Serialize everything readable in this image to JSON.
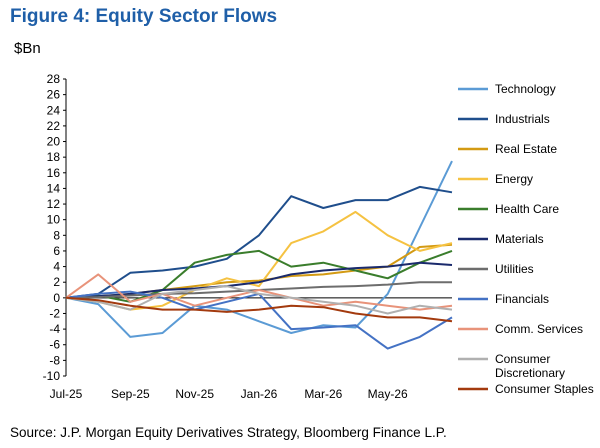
{
  "title": "Figure 4: Equity Sector Flows",
  "unit_label": "$Bn",
  "source": "Source: J.P. Morgan Equity Derivatives Strategy, Bloomberg Finance L.P.",
  "chart_data": {
    "type": "line",
    "title": "Figure 4: Equity Sector Flows",
    "ylabel": "$Bn",
    "xlabel": "",
    "ylim": [
      -10,
      28
    ],
    "yticks": [
      28,
      26,
      24,
      22,
      20,
      18,
      16,
      14,
      12,
      10,
      8,
      6,
      4,
      2,
      0,
      -2,
      -4,
      -6,
      -8,
      -10
    ],
    "xticks": [
      "Jul-25",
      "Sep-25",
      "Nov-25",
      "Jan-26",
      "Mar-26",
      "May-26"
    ],
    "x": [
      "Jul-25",
      "Aug-25",
      "Sep-25",
      "Oct-25",
      "Nov-25",
      "Dec-25",
      "Jan-26",
      "Feb-26",
      "Mar-26",
      "Apr-26",
      "May-26",
      "Jun-26",
      "Jul-26"
    ],
    "grid": false,
    "legend_position": "right",
    "series": [
      {
        "name": "Technology",
        "color": "#5b9bd5",
        "values": [
          0,
          -0.8,
          -5,
          -4.5,
          -1,
          -1.5,
          -3,
          -4.5,
          -3.5,
          -3.8,
          0.5,
          9,
          17.5
        ]
      },
      {
        "name": "Industrials",
        "color": "#1f4e8c",
        "values": [
          0,
          0.5,
          3.2,
          3.5,
          4,
          5,
          8,
          13,
          11.5,
          12.5,
          12.5,
          14.2,
          13.5
        ]
      },
      {
        "name": "Real Estate",
        "color": "#d39a13",
        "values": [
          0,
          0.2,
          0.5,
          1,
          1.5,
          2,
          2.2,
          2.8,
          3,
          3.5,
          4,
          6.5,
          6.8
        ]
      },
      {
        "name": "Energy",
        "color": "#f5c242",
        "values": [
          0,
          -0.5,
          -1.5,
          -1,
          1,
          2.5,
          1.5,
          7,
          8.5,
          11,
          8,
          6,
          7
        ]
      },
      {
        "name": "Health Care",
        "color": "#3a7d2c",
        "values": [
          0,
          0.3,
          -0.5,
          1,
          4.5,
          5.5,
          6,
          4,
          4.5,
          3.5,
          2.5,
          4.5,
          6
        ]
      },
      {
        "name": "Materials",
        "color": "#1a2a6c",
        "values": [
          0,
          0.2,
          0.5,
          1,
          1.2,
          1.5,
          2,
          3,
          3.5,
          3.8,
          4,
          4.5,
          4.2
        ]
      },
      {
        "name": "Utilities",
        "color": "#6d6d6d",
        "values": [
          0,
          0.1,
          0.3,
          0.5,
          0.6,
          0.8,
          1,
          1.2,
          1.4,
          1.5,
          1.7,
          2,
          2
        ]
      },
      {
        "name": "Financials",
        "color": "#4472c4",
        "values": [
          0,
          0.5,
          0.8,
          0,
          -1.5,
          -0.5,
          0.5,
          -4,
          -3.8,
          -3.5,
          -6.5,
          -5,
          -2.5
        ]
      },
      {
        "name": "Comm. Services",
        "color": "#e8937a",
        "values": [
          0,
          3,
          -0.5,
          0.5,
          -1,
          0,
          1,
          0,
          -1,
          -0.5,
          -1,
          -1.5,
          -1
        ]
      },
      {
        "name": "Consumer Discretionary",
        "color": "#b0b0b0",
        "values": [
          0,
          -0.5,
          -1.5,
          0.5,
          1,
          1.5,
          0.5,
          0,
          -0.5,
          -1,
          -2,
          -1,
          -1.5
        ]
      },
      {
        "name": "Consumer Staples",
        "color": "#a33a0e",
        "values": [
          0,
          -0.3,
          -1,
          -1.5,
          -1.5,
          -1.8,
          -1.5,
          -1,
          -1.2,
          -2,
          -2.5,
          -2.5,
          -3
        ]
      }
    ]
  }
}
